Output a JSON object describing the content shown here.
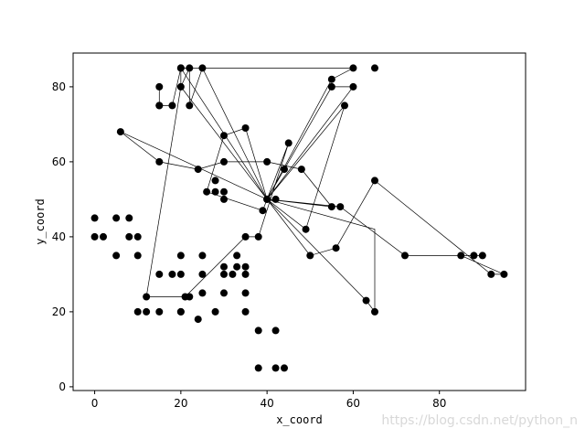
{
  "chart_data": {
    "type": "scatter",
    "xlabel": "x_coord",
    "ylabel": "y_coord",
    "xlim": [
      -5,
      100
    ],
    "ylim": [
      -1,
      89
    ],
    "x_ticks": [
      0,
      20,
      40,
      60,
      80
    ],
    "y_ticks": [
      0,
      20,
      40,
      60,
      80
    ],
    "grid": false,
    "colors": {
      "black": "#000000",
      "blue": "#0000ff",
      "orange": "#ffa500"
    },
    "series": [
      {
        "color": "#000000",
        "points": [
          [
            40,
            50
          ],
          [
            25,
            85
          ],
          [
            22,
            75
          ],
          [
            22,
            85
          ],
          [
            20,
            80
          ],
          [
            20,
            85
          ],
          [
            18,
            75
          ],
          [
            15,
            75
          ],
          [
            15,
            80
          ],
          [
            30,
            50
          ],
          [
            30,
            52
          ],
          [
            28,
            52
          ],
          [
            28,
            55
          ],
          [
            15,
            75
          ],
          [
            10,
            35
          ],
          [
            10,
            40
          ],
          [
            8,
            40
          ],
          [
            8,
            45
          ],
          [
            5,
            35
          ],
          [
            5,
            45
          ],
          [
            2,
            40
          ],
          [
            0,
            40
          ],
          [
            0,
            45
          ],
          [
            35,
            30
          ],
          [
            35,
            32
          ],
          [
            33,
            32
          ],
          [
            33,
            35
          ],
          [
            32,
            30
          ],
          [
            30,
            30
          ],
          [
            30,
            32
          ],
          [
            25,
            30
          ],
          [
            25,
            35
          ],
          [
            20,
            30
          ],
          [
            20,
            35
          ],
          [
            15,
            30
          ],
          [
            18,
            30
          ],
          [
            10,
            20
          ],
          [
            12,
            20
          ],
          [
            15,
            20
          ],
          [
            20,
            20
          ],
          [
            22,
            24
          ],
          [
            24,
            18
          ],
          [
            25,
            25
          ],
          [
            28,
            20
          ],
          [
            30,
            25
          ],
          [
            35,
            25
          ],
          [
            35,
            20
          ],
          [
            38,
            15
          ],
          [
            38,
            5
          ],
          [
            44,
            5
          ],
          [
            42,
            15
          ],
          [
            42,
            5
          ]
        ],
        "route": [
          [
            40,
            50
          ],
          [
            25,
            85
          ],
          [
            22,
            75
          ],
          [
            22,
            85
          ],
          [
            20,
            80
          ],
          [
            20,
            85
          ],
          [
            18,
            75
          ],
          [
            15,
            75
          ],
          [
            15,
            80
          ]
        ]
      },
      {
        "color": "#000000",
        "points": [
          [
            40,
            50
          ],
          [
            20,
            85
          ],
          [
            60,
            85
          ],
          [
            55,
            82
          ],
          [
            55,
            80
          ],
          [
            65,
            85
          ],
          [
            58,
            75
          ],
          [
            45,
            65
          ],
          [
            35,
            69
          ],
          [
            30,
            67
          ],
          [
            40,
            60
          ],
          [
            44,
            58
          ],
          [
            35,
            40
          ],
          [
            30,
            60
          ],
          [
            42,
            50
          ],
          [
            48,
            58
          ],
          [
            49,
            42
          ],
          [
            55,
            48
          ],
          [
            57,
            48
          ],
          [
            56,
            37
          ],
          [
            50,
            35
          ],
          [
            65,
            55
          ],
          [
            72,
            35
          ],
          [
            85,
            35
          ],
          [
            88,
            35
          ],
          [
            90,
            35
          ],
          [
            92,
            30
          ],
          [
            95,
            30
          ],
          [
            6,
            68
          ],
          [
            15,
            60
          ],
          [
            24,
            58
          ],
          [
            26,
            52
          ],
          [
            39,
            47
          ],
          [
            38,
            40
          ],
          [
            12,
            24
          ],
          [
            20,
            20
          ],
          [
            21,
            24
          ],
          [
            65,
            20
          ],
          [
            63,
            23
          ],
          [
            60,
            80
          ]
        ],
        "route": [
          [
            40,
            50
          ],
          [
            6,
            68
          ],
          [
            15,
            60
          ],
          [
            24,
            58
          ],
          [
            30,
            60
          ],
          [
            40,
            60
          ],
          [
            48,
            58
          ],
          [
            55,
            48
          ],
          [
            40,
            50
          ],
          [
            20,
            85
          ],
          [
            60,
            85
          ],
          [
            55,
            82
          ],
          [
            40,
            50
          ],
          [
            35,
            69
          ],
          [
            30,
            67
          ],
          [
            26,
            52
          ],
          [
            39,
            47
          ],
          [
            40,
            50
          ],
          [
            45,
            65
          ],
          [
            38,
            40
          ],
          [
            35,
            40
          ],
          [
            21,
            24
          ],
          [
            12,
            24
          ],
          [
            20,
            80
          ],
          [
            40,
            50
          ],
          [
            55,
            80
          ],
          [
            60,
            80
          ],
          [
            40,
            50
          ],
          [
            58,
            75
          ],
          [
            49,
            42
          ],
          [
            40,
            50
          ],
          [
            50,
            35
          ],
          [
            56,
            37
          ],
          [
            65,
            55
          ],
          [
            92,
            30
          ],
          [
            95,
            30
          ],
          [
            85,
            35
          ],
          [
            88,
            35
          ],
          [
            90,
            35
          ],
          [
            72,
            35
          ],
          [
            57,
            48
          ],
          [
            40,
            50
          ],
          [
            65,
            42
          ],
          [
            65,
            20
          ],
          [
            63,
            23
          ],
          [
            40,
            50
          ]
        ]
      }
    ]
  },
  "watermark": "https://blog.csdn.net/python_n"
}
